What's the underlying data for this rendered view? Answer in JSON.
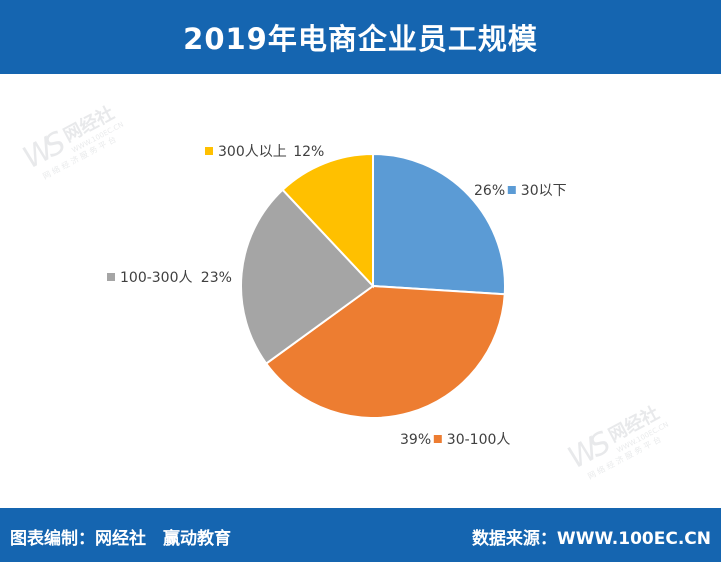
{
  "header": {
    "title": "2019年电商企业员工规模"
  },
  "chart_data": {
    "type": "pie",
    "title": "2019年电商企业员工规模",
    "slices": [
      {
        "label": "30以下",
        "value": 26,
        "value_label": "26%",
        "color": "#5b9bd5"
      },
      {
        "label": "30-100人",
        "value": 39,
        "value_label": "39%",
        "color": "#ed7d31"
      },
      {
        "label": "100-300人",
        "value": 23,
        "value_label": "23%",
        "color": "#a5a5a5"
      },
      {
        "label": "300人以上",
        "value": 12,
        "value_label": "12%",
        "color": "#ffc000"
      }
    ],
    "start_angle_deg": 0,
    "direction": "clockwise",
    "legend_placement": "inline labels"
  },
  "watermark": {
    "logo": "网经社",
    "url": "WWW.100EC.CN",
    "slogan": "网 络 经 济 服 务 平 台"
  },
  "footer": {
    "left": "图表编制：网经社　赢动教育",
    "right": "数据来源：WWW.100EC.CN"
  },
  "colors": {
    "brand": "#1565b0"
  }
}
